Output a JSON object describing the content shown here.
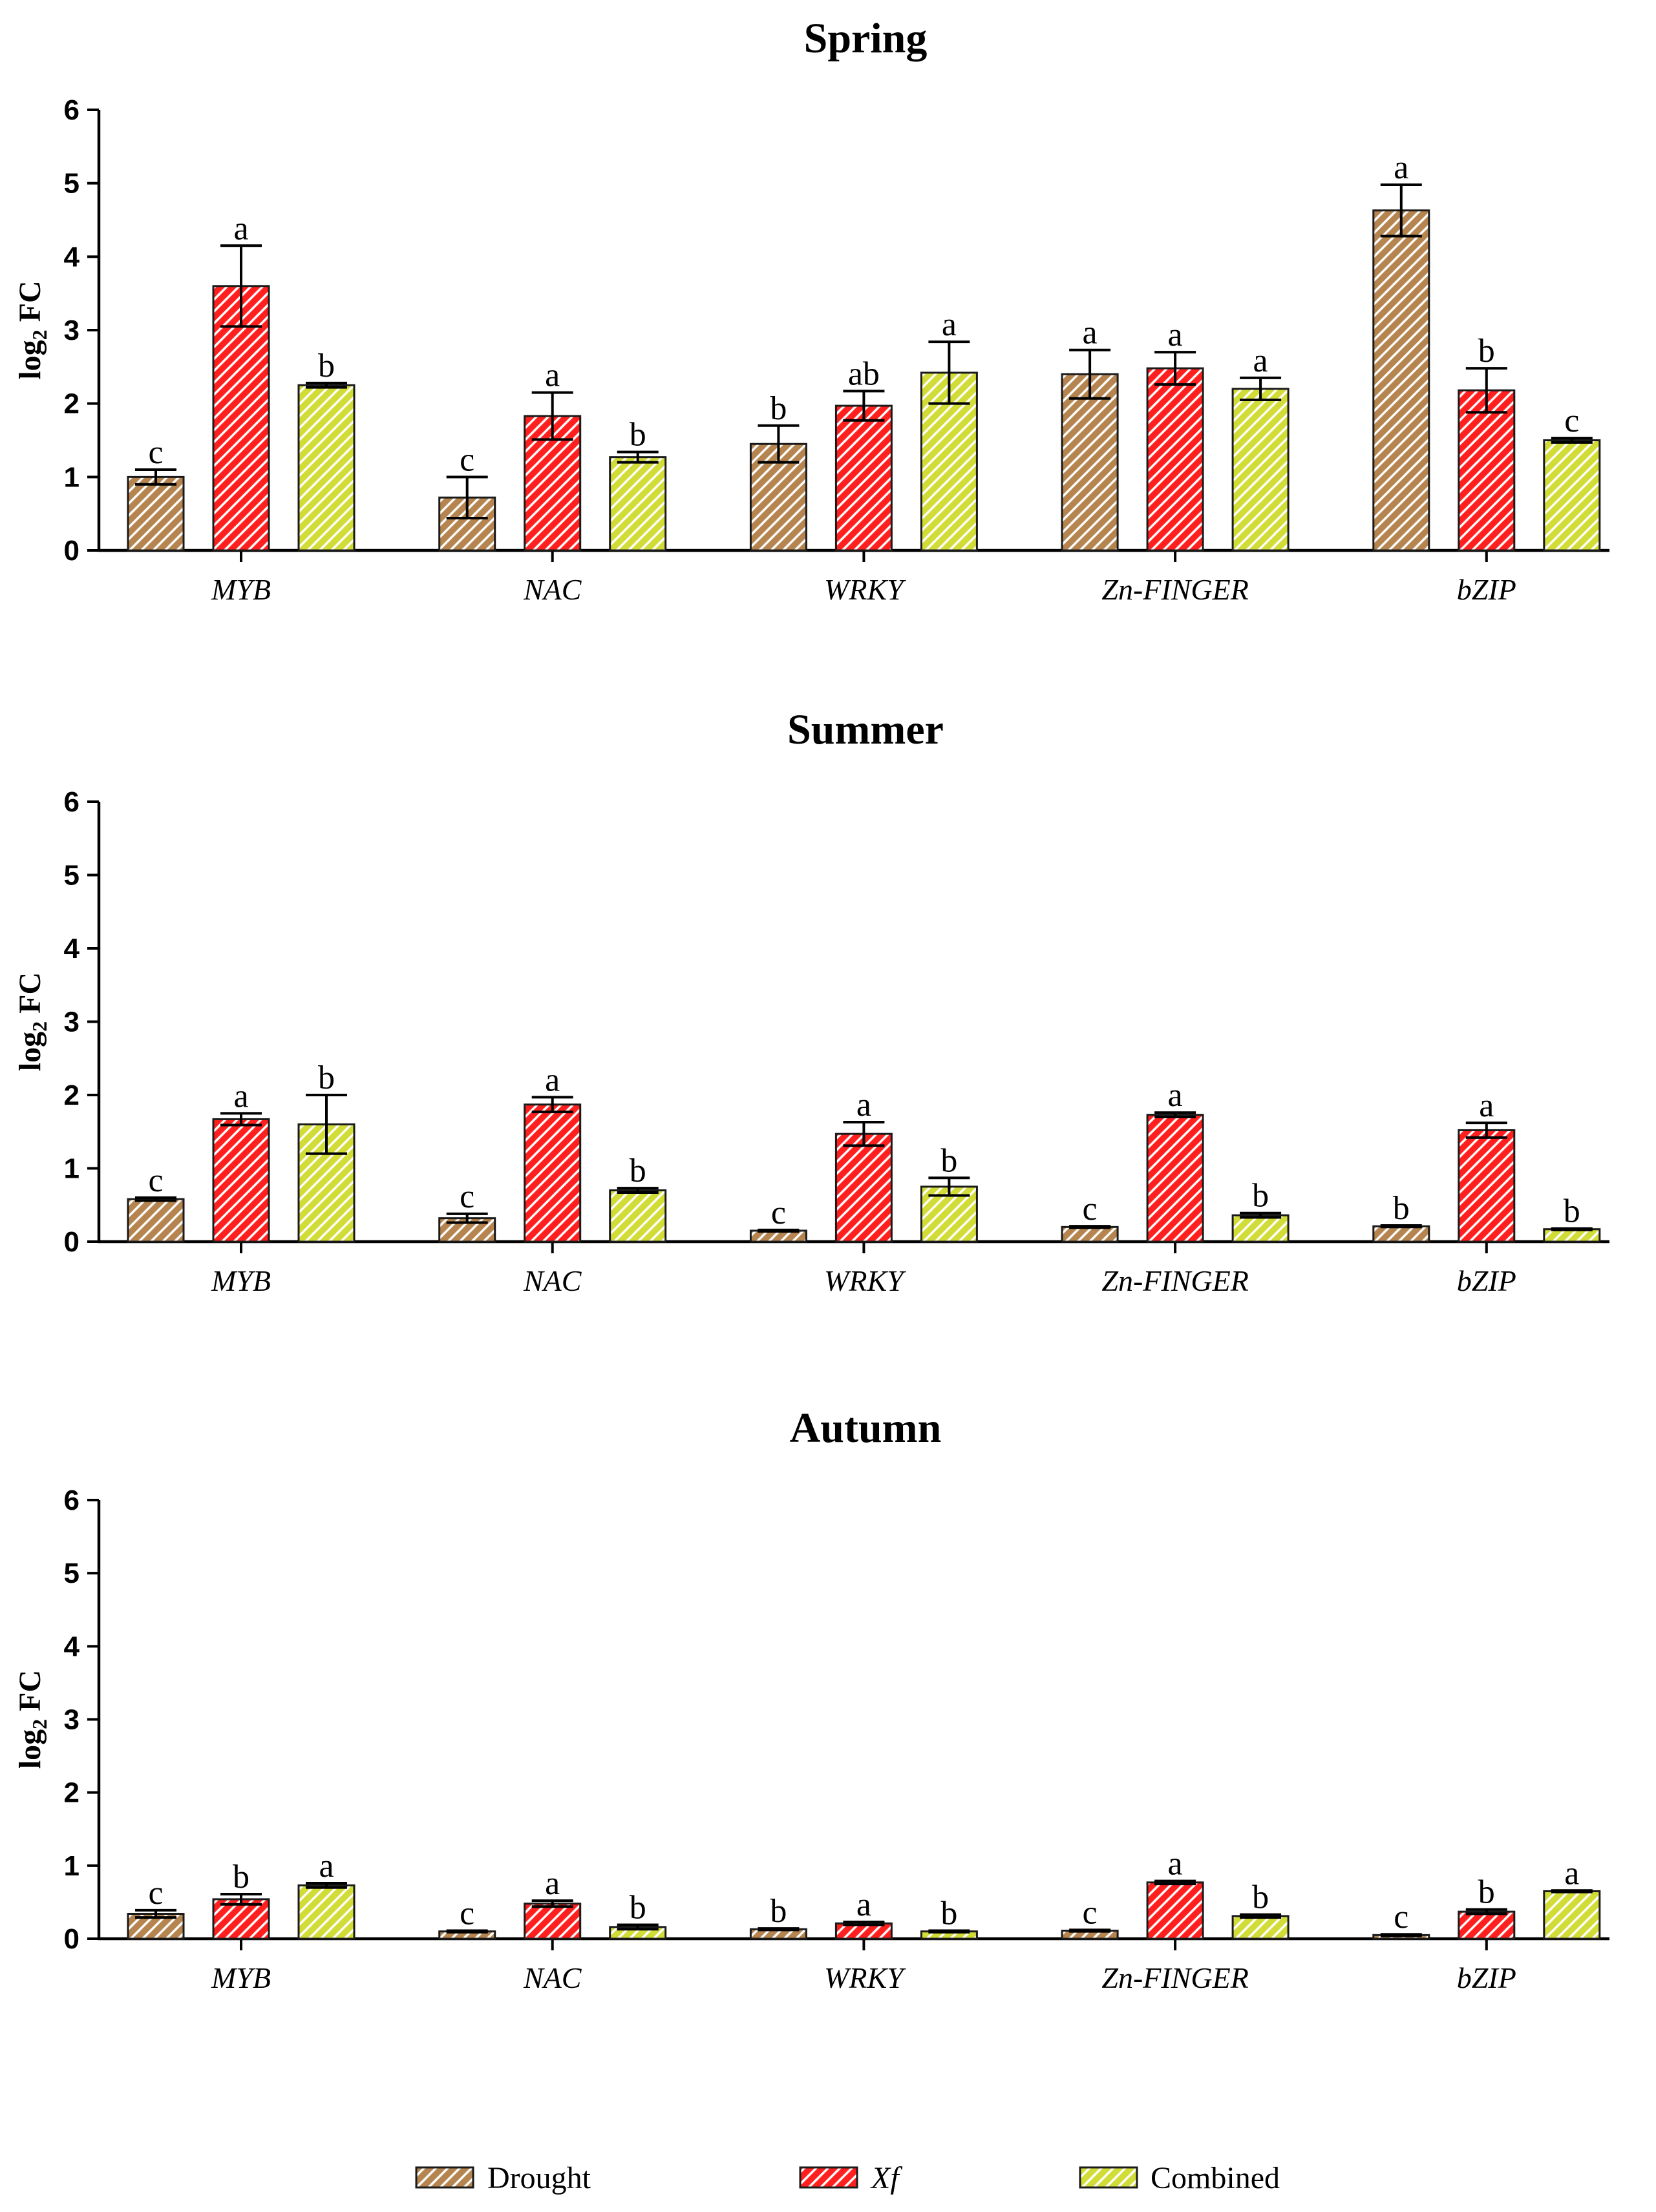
{
  "chart_data": [
    {
      "type": "bar",
      "title": "Spring",
      "categories": [
        "MYB",
        "NAC",
        "WRKY",
        "Zn-FINGER",
        "bZIP"
      ],
      "ylabel": {
        "main": "log",
        "subscript": "2",
        "suffix": "FC"
      },
      "ylim": [
        0,
        6
      ],
      "yticks": [
        0,
        1,
        2,
        3,
        4,
        5,
        6
      ],
      "series": [
        {
          "name": "Drought",
          "color": "#B5844F",
          "values": [
            1.0,
            0.72,
            1.45,
            2.4,
            4.63
          ],
          "errors": [
            0.1,
            0.28,
            0.25,
            0.33,
            0.35
          ],
          "letters": [
            "c",
            "c",
            "b",
            "a",
            "a"
          ]
        },
        {
          "name": "Xf",
          "color": "#FF1F1F",
          "values": [
            3.6,
            1.83,
            1.97,
            2.48,
            2.18
          ],
          "errors": [
            0.55,
            0.32,
            0.2,
            0.22,
            0.3
          ],
          "letters": [
            "a",
            "a",
            "ab",
            "a",
            "b"
          ]
        },
        {
          "name": "Combined",
          "color": "#D2DC36",
          "values": [
            2.25,
            1.27,
            2.42,
            2.2,
            1.5
          ],
          "errors": [
            0.03,
            0.07,
            0.42,
            0.15,
            0.03
          ],
          "letters": [
            "b",
            "b",
            "a",
            "a",
            "c"
          ]
        }
      ]
    },
    {
      "type": "bar",
      "title": "Summer",
      "categories": [
        "MYB",
        "NAC",
        "WRKY",
        "Zn-FINGER",
        "bZIP"
      ],
      "ylabel": {
        "main": "log",
        "subscript": "2",
        "suffix": "FC"
      },
      "ylim": [
        0,
        6
      ],
      "yticks": [
        0,
        1,
        2,
        3,
        4,
        5,
        6
      ],
      "series": [
        {
          "name": "Drought",
          "color": "#B5844F",
          "values": [
            0.58,
            0.32,
            0.15,
            0.2,
            0.21
          ],
          "errors": [
            0.02,
            0.06,
            0.01,
            0.01,
            0.01
          ],
          "letters": [
            "c",
            "c",
            "c",
            "c",
            "b"
          ]
        },
        {
          "name": "Xf",
          "color": "#FF1F1F",
          "values": [
            1.67,
            1.87,
            1.47,
            1.73,
            1.52
          ],
          "errors": [
            0.08,
            0.1,
            0.16,
            0.03,
            0.1
          ],
          "letters": [
            "a",
            "a",
            "a",
            "a",
            "a"
          ]
        },
        {
          "name": "Combined",
          "color": "#D2DC36",
          "values": [
            1.6,
            0.7,
            0.75,
            0.36,
            0.17
          ],
          "errors": [
            0.4,
            0.03,
            0.12,
            0.03,
            0.01
          ],
          "letters": [
            "b",
            "b",
            "b",
            "b",
            "b"
          ]
        }
      ]
    },
    {
      "type": "bar",
      "title": "Autumn",
      "categories": [
        "MYB",
        "NAC",
        "WRKY",
        "Zn-FINGER",
        "bZIP"
      ],
      "ylabel": {
        "main": "log",
        "subscript": "2",
        "suffix": "FC"
      },
      "ylim": [
        0,
        6
      ],
      "yticks": [
        0,
        1,
        2,
        3,
        4,
        5,
        6
      ],
      "series": [
        {
          "name": "Drought",
          "color": "#B5844F",
          "values": [
            0.34,
            0.1,
            0.13,
            0.11,
            0.05
          ],
          "errors": [
            0.05,
            0.01,
            0.01,
            0.01,
            0.01
          ],
          "letters": [
            "c",
            "c",
            "b",
            "c",
            "c"
          ]
        },
        {
          "name": "Xf",
          "color": "#FF1F1F",
          "values": [
            0.54,
            0.48,
            0.21,
            0.77,
            0.37
          ],
          "errors": [
            0.07,
            0.04,
            0.02,
            0.02,
            0.03
          ],
          "letters": [
            "b",
            "a",
            "a",
            "a",
            "b"
          ]
        },
        {
          "name": "Combined",
          "color": "#D2DC36",
          "values": [
            0.73,
            0.16,
            0.1,
            0.31,
            0.65
          ],
          "errors": [
            0.03,
            0.03,
            0.01,
            0.02,
            0.01
          ],
          "letters": [
            "a",
            "b",
            "b",
            "b",
            "a"
          ]
        }
      ]
    }
  ]
}
